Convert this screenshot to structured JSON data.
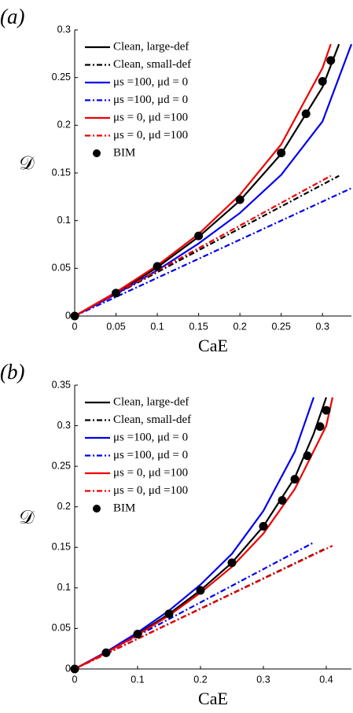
{
  "chart_data": [
    {
      "type": "line",
      "panel_label": "(a)",
      "xlabel": "CaE",
      "ylabel": "𝒟",
      "xlim": [
        0,
        0.335
      ],
      "xticks": [
        0,
        0.05,
        0.1,
        0.15,
        0.2,
        0.25,
        0.3
      ],
      "ylim": [
        0,
        0.3
      ],
      "yticks": [
        0,
        0.05,
        0.1,
        0.15,
        0.2,
        0.25,
        0.3
      ],
      "legend": "upper left",
      "series": [
        {
          "name": "Clean, large-def",
          "color": "#000000",
          "style": "solid",
          "x": [
            0,
            0.05,
            0.1,
            0.15,
            0.2,
            0.25,
            0.3,
            0.32
          ],
          "values": [
            0,
            0.024,
            0.051,
            0.083,
            0.121,
            0.17,
            0.24,
            0.285
          ]
        },
        {
          "name": "Clean, small-def",
          "color": "#000000",
          "style": "dashdot",
          "x": [
            0,
            0.32
          ],
          "values": [
            0,
            0.147
          ]
        },
        {
          "name": "μs =100, μd = 0",
          "color": "#0000ee",
          "style": "solid",
          "x": [
            0,
            0.05,
            0.1,
            0.15,
            0.2,
            0.25,
            0.3,
            0.335
          ],
          "values": [
            0,
            0.023,
            0.048,
            0.076,
            0.108,
            0.148,
            0.204,
            0.285
          ]
        },
        {
          "name": "μs =100, μd = 0",
          "color": "#0000ee",
          "style": "dashdot",
          "x": [
            0,
            0.335
          ],
          "values": [
            0,
            0.134
          ]
        },
        {
          "name": "μs = 0, μd =100",
          "color": "#ee0000",
          "style": "solid",
          "x": [
            0,
            0.05,
            0.1,
            0.15,
            0.2,
            0.25,
            0.3,
            0.31
          ],
          "values": [
            0,
            0.025,
            0.053,
            0.086,
            0.127,
            0.18,
            0.26,
            0.285
          ]
        },
        {
          "name": "μs = 0, μd =100",
          "color": "#ee0000",
          "style": "dashdot",
          "x": [
            0,
            0.31
          ],
          "values": [
            0,
            0.147
          ]
        },
        {
          "name": "BIM",
          "color": "#000000",
          "style": "markers",
          "x": [
            0,
            0.05,
            0.1,
            0.15,
            0.2,
            0.25,
            0.28,
            0.3,
            0.31
          ],
          "values": [
            0,
            0.024,
            0.052,
            0.084,
            0.122,
            0.171,
            0.212,
            0.246,
            0.268
          ]
        }
      ]
    },
    {
      "type": "line",
      "panel_label": "(b)",
      "xlabel": "CaE",
      "ylabel": "𝒟",
      "xlim": [
        0,
        0.44
      ],
      "xticks": [
        0,
        0.1,
        0.2,
        0.3,
        0.4
      ],
      "ylim": [
        0,
        0.35
      ],
      "yticks": [
        0,
        0.05,
        0.1,
        0.15,
        0.2,
        0.25,
        0.3,
        0.35
      ],
      "legend": "upper left",
      "series": [
        {
          "name": "Clean, large-def",
          "color": "#000000",
          "style": "solid",
          "x": [
            0,
            0.05,
            0.1,
            0.15,
            0.2,
            0.25,
            0.3,
            0.35,
            0.38,
            0.4
          ],
          "values": [
            0,
            0.02,
            0.043,
            0.068,
            0.097,
            0.131,
            0.176,
            0.236,
            0.29,
            0.335
          ]
        },
        {
          "name": "Clean, small-def",
          "color": "#000000",
          "style": "dashdot",
          "x": [
            0,
            0.4
          ],
          "values": [
            0,
            0.149
          ]
        },
        {
          "name": "μs =100, μd = 0",
          "color": "#0000ee",
          "style": "solid",
          "x": [
            0,
            0.05,
            0.1,
            0.15,
            0.2,
            0.25,
            0.3,
            0.35,
            0.38
          ],
          "values": [
            0,
            0.021,
            0.045,
            0.072,
            0.104,
            0.142,
            0.195,
            0.268,
            0.335
          ]
        },
        {
          "name": "μs =100, μd = 0",
          "color": "#0000ee",
          "style": "dashdot",
          "x": [
            0,
            0.38
          ],
          "values": [
            0,
            0.156
          ]
        },
        {
          "name": "μs = 0, μd =100",
          "color": "#ee0000",
          "style": "solid",
          "x": [
            0,
            0.05,
            0.1,
            0.15,
            0.2,
            0.25,
            0.3,
            0.35,
            0.4,
            0.41
          ],
          "values": [
            0,
            0.02,
            0.042,
            0.066,
            0.094,
            0.126,
            0.167,
            0.222,
            0.3,
            0.335
          ]
        },
        {
          "name": "μs = 0, μd =100",
          "color": "#ee0000",
          "style": "dashdot",
          "x": [
            0,
            0.41
          ],
          "values": [
            0,
            0.152
          ]
        },
        {
          "name": "BIM",
          "color": "#000000",
          "style": "markers",
          "x": [
            0,
            0.05,
            0.1,
            0.15,
            0.2,
            0.25,
            0.3,
            0.33,
            0.35,
            0.37,
            0.39,
            0.4
          ],
          "values": [
            0,
            0.02,
            0.043,
            0.068,
            0.097,
            0.131,
            0.176,
            0.208,
            0.234,
            0.263,
            0.299,
            0.319
          ]
        }
      ]
    }
  ]
}
